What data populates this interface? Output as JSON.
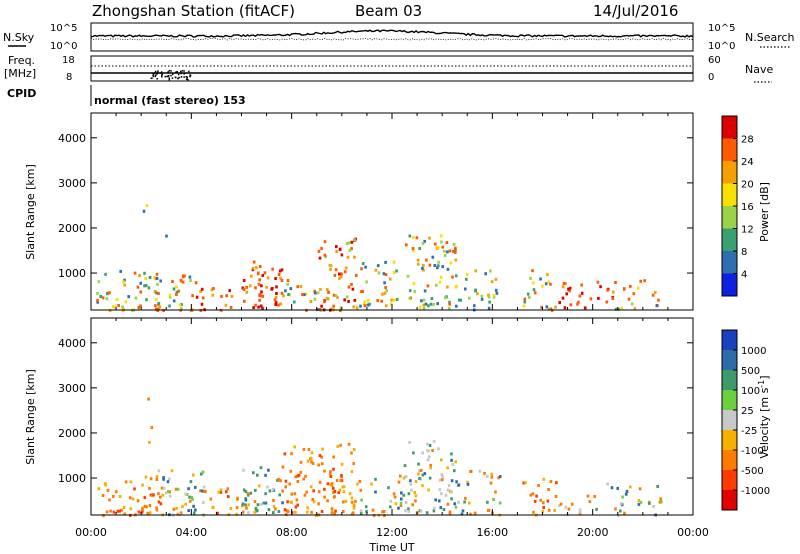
{
  "header": {
    "station": "Zhongshan Station (fitACF)",
    "beam": "Beam 03",
    "date": "14/Jul/2016"
  },
  "chart_data": [
    {
      "type": "line",
      "panel": "noise",
      "left_label": "N.Sky",
      "right_label": "N.Search",
      "left_ticks": [
        "10^5",
        "10^0"
      ],
      "right_ticks": [
        "10^5",
        "10^0"
      ],
      "description_series": [
        "N.Sky",
        "N.Search"
      ]
    },
    {
      "type": "line",
      "panel": "frequency",
      "left_label": "Freq.",
      "left_unit": "[MHz]",
      "left_ticks": [
        18,
        8
      ],
      "right_label": "Nave",
      "right_ticks": [
        60,
        0
      ]
    },
    {
      "type": "table",
      "panel": "cpid",
      "label": "CPID",
      "text": "normal (fast stereo) 153"
    },
    {
      "type": "heatmap",
      "panel": "power",
      "ylabel": "Slant Range [km]",
      "xlabel": "",
      "yticks": [
        1000,
        2000,
        3000,
        4000
      ],
      "ylim": [
        180,
        4550
      ],
      "colorbar_label": "Power [dB]",
      "colorbar_ticks": [
        "28",
        "24",
        "20",
        "16",
        "12",
        "8",
        "4"
      ],
      "colorbar_colors": [
        "#dd0000",
        "#ff5a00",
        "#f6a000",
        "#f8e000",
        "#9ad24a",
        "#3aa070",
        "#2f6eb0",
        "#1020e0"
      ]
    },
    {
      "type": "heatmap",
      "panel": "velocity",
      "ylabel": "Slant Range [km]",
      "xlabel": "Time UT",
      "yticks": [
        1000,
        2000,
        3000,
        4000
      ],
      "ylim": [
        180,
        4550
      ],
      "xticks": [
        "00:00",
        "04:00",
        "08:00",
        "12:00",
        "16:00",
        "20:00",
        "00:00"
      ],
      "colorbar_label": "Velocity [m s",
      "colorbar_label_sup": "-1",
      "colorbar_label_end": "]",
      "colorbar_ticks": [
        "1000",
        "500",
        "100",
        "25",
        "-25",
        "-100",
        "-500",
        "-1000"
      ],
      "colorbar_colors": [
        "#1a40c0",
        "#2d6aaa",
        "#3e9a6a",
        "#6ad040",
        "#c8c8c8",
        "#f6b000",
        "#ff7a00",
        "#ff3a00",
        "#e00000"
      ]
    }
  ]
}
